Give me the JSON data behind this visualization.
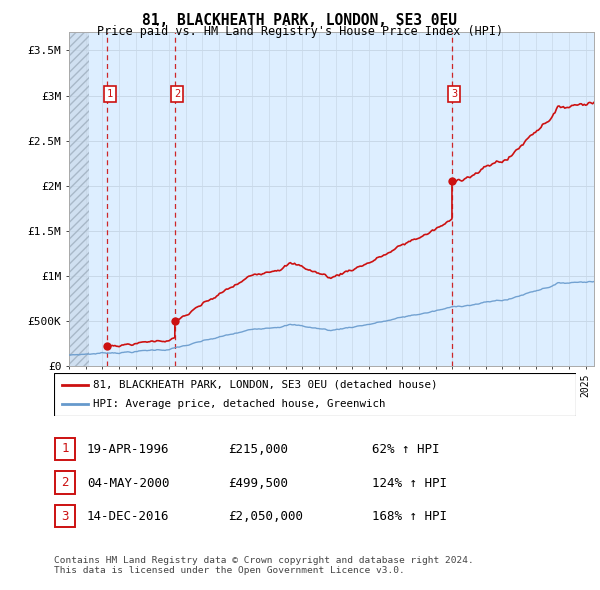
{
  "title": "81, BLACKHEATH PARK, LONDON, SE3 0EU",
  "subtitle": "Price paid vs. HM Land Registry's House Price Index (HPI)",
  "ylabel_ticks": [
    "£0",
    "£500K",
    "£1M",
    "£1.5M",
    "£2M",
    "£2.5M",
    "£3M",
    "£3.5M"
  ],
  "ytick_values": [
    0,
    500000,
    1000000,
    1500000,
    2000000,
    2500000,
    3000000,
    3500000
  ],
  "ylim": [
    0,
    3700000
  ],
  "xlim_start": 1994.0,
  "xlim_end": 2025.5,
  "bg_color": "#ddeeff",
  "hatch_color": "#c0d0e0",
  "grid_color": "#c8d8e8",
  "line_color_red": "#cc1111",
  "line_color_blue": "#6699cc",
  "purchases": [
    {
      "year": 1996.3,
      "price": 215000,
      "label": "1"
    },
    {
      "year": 2000.35,
      "price": 499500,
      "label": "2"
    },
    {
      "year": 2016.96,
      "price": 2050000,
      "label": "3"
    }
  ],
  "purchase_dashed_color": "#cc1111",
  "number_box_color": "#cc1111",
  "legend_line1": "81, BLACKHEATH PARK, LONDON, SE3 0EU (detached house)",
  "legend_line2": "HPI: Average price, detached house, Greenwich",
  "table_rows": [
    {
      "num": "1",
      "date": "19-APR-1996",
      "price": "£215,000",
      "hpi": "62% ↑ HPI"
    },
    {
      "num": "2",
      "date": "04-MAY-2000",
      "price": "£499,500",
      "hpi": "124% ↑ HPI"
    },
    {
      "num": "3",
      "date": "14-DEC-2016",
      "price": "£2,050,000",
      "hpi": "168% ↑ HPI"
    }
  ],
  "footer": "Contains HM Land Registry data © Crown copyright and database right 2024.\nThis data is licensed under the Open Government Licence v3.0."
}
